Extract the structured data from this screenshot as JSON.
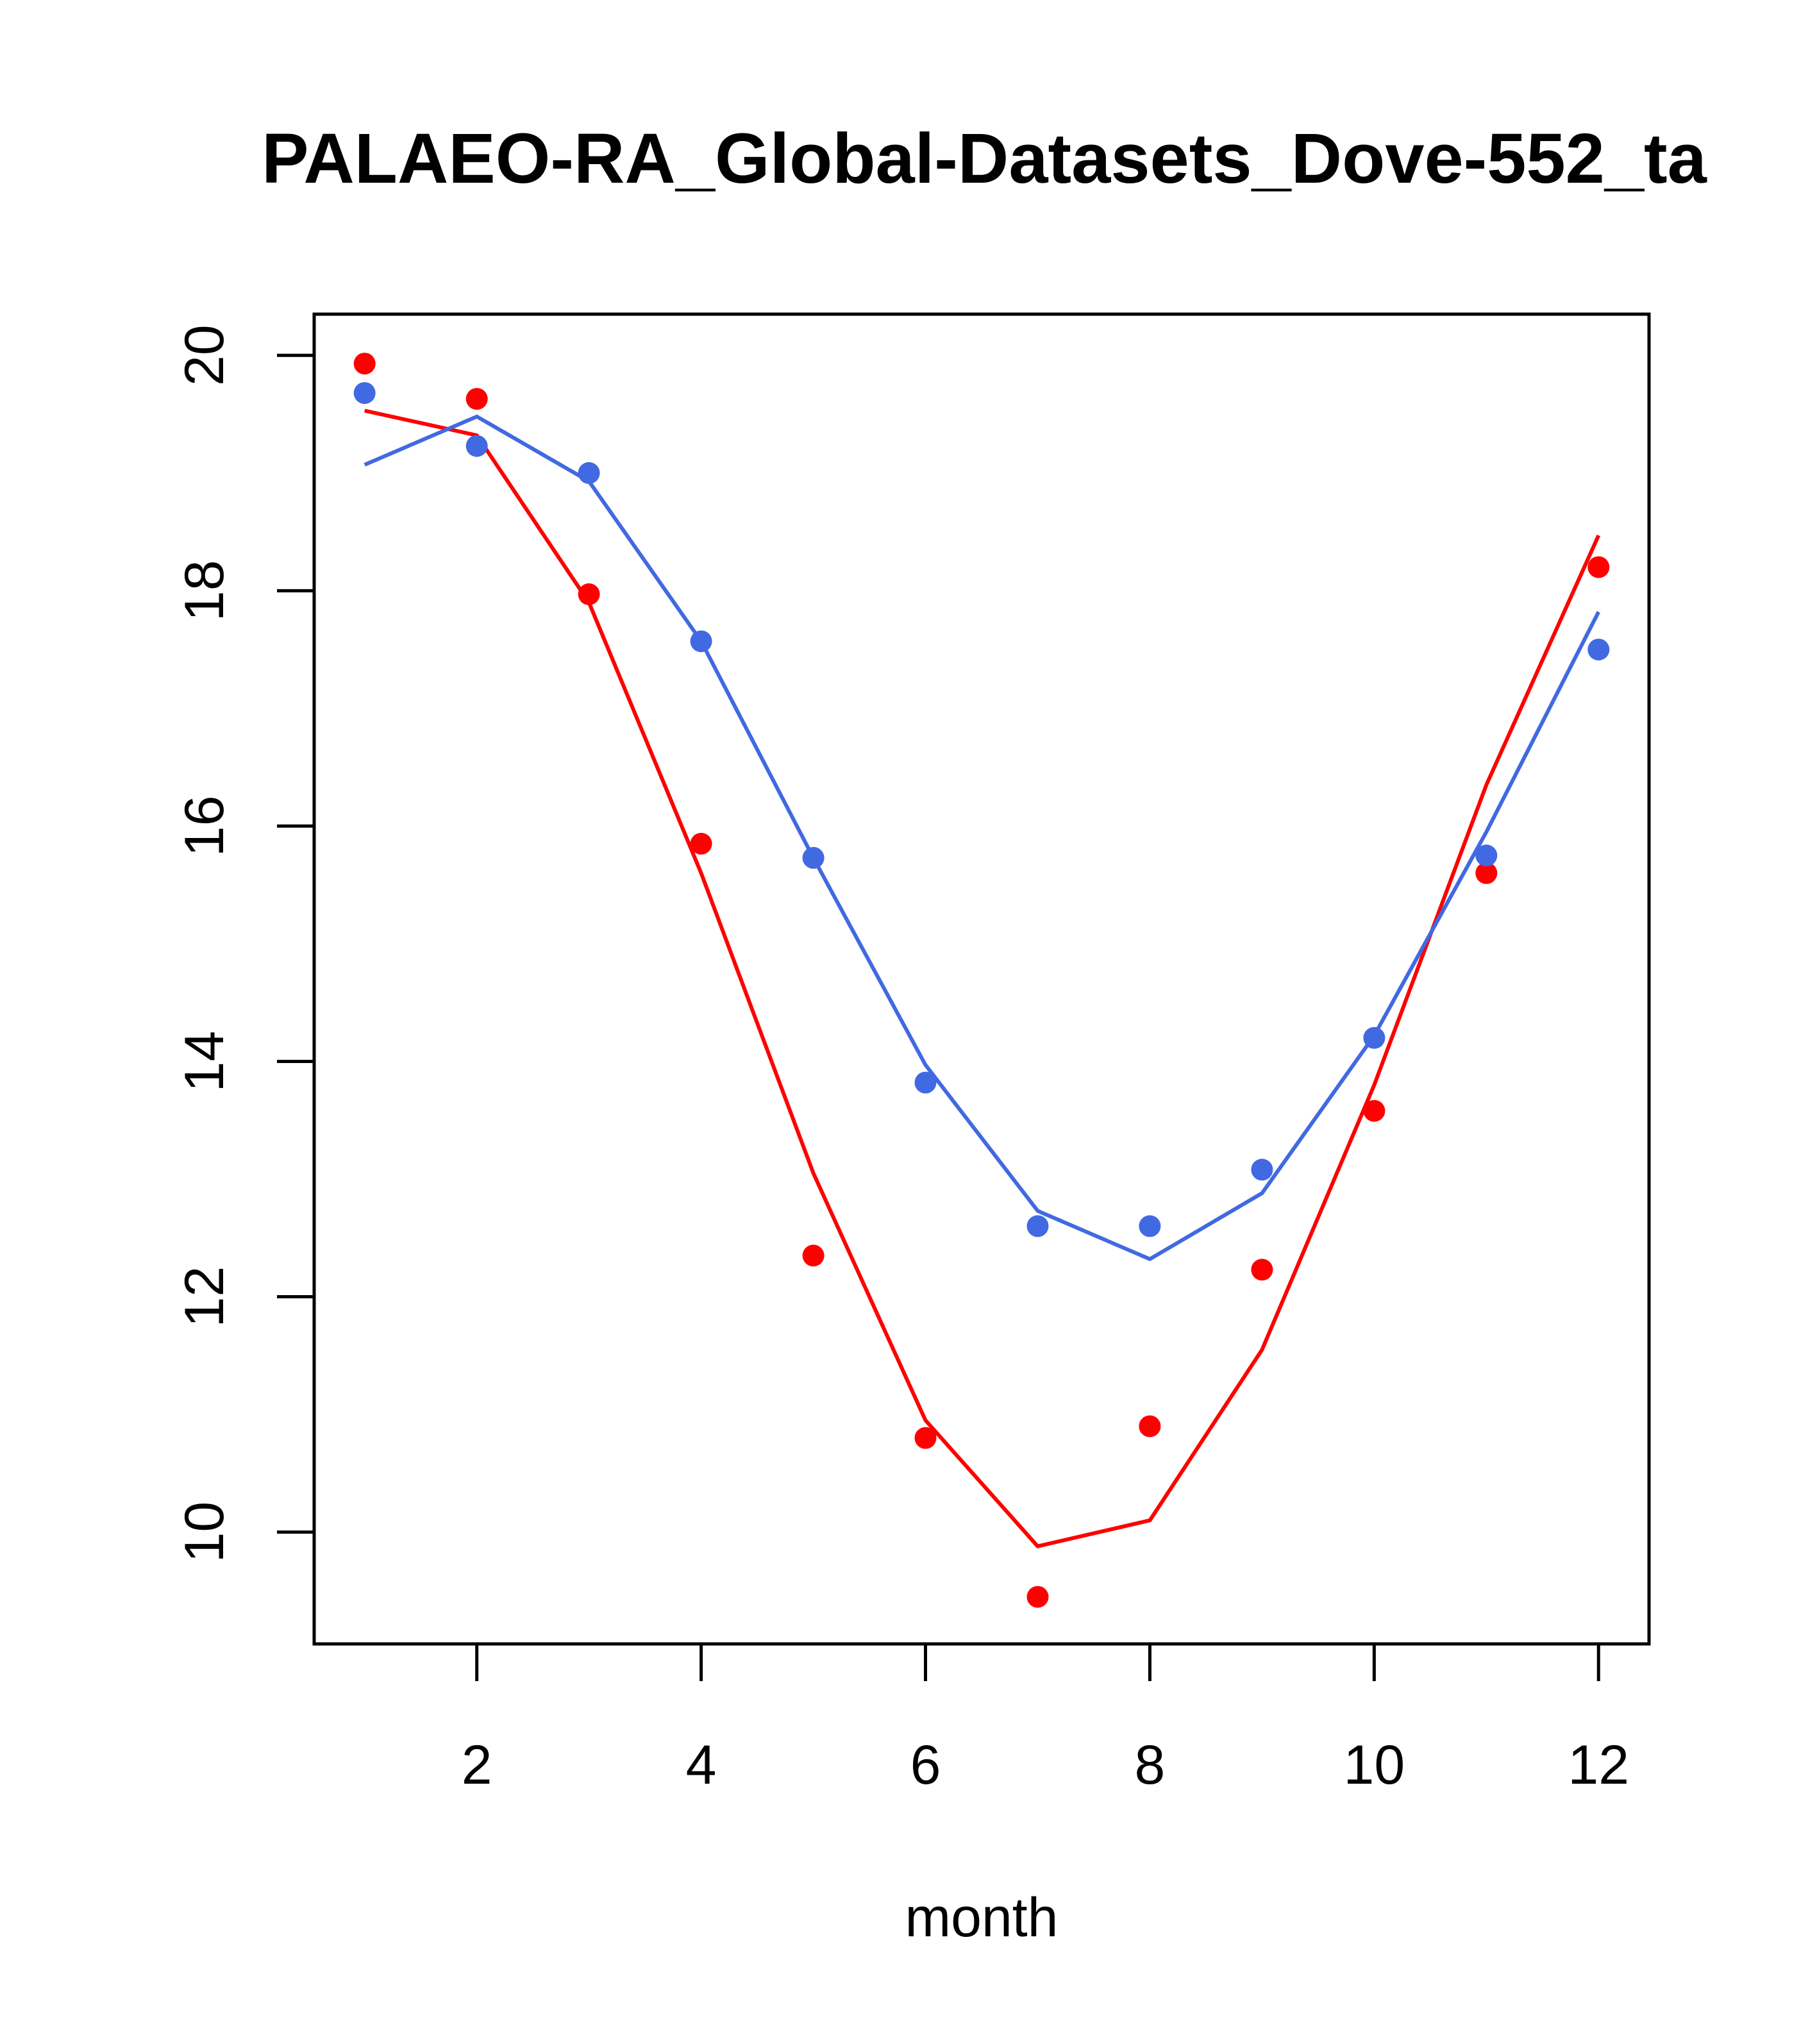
{
  "chart_data": {
    "type": "line",
    "title": "PALAEO-RA_Global-Datasets_Dove-552_ta",
    "xlabel": "month",
    "ylabel": "",
    "xlim": [
      0.55,
      12.45
    ],
    "ylim": [
      9.05,
      20.35
    ],
    "xticks": [
      2,
      4,
      6,
      8,
      10,
      12
    ],
    "yticks": [
      10,
      12,
      14,
      16,
      18,
      20
    ],
    "grid": false,
    "legend": "none",
    "series": [
      {
        "name": "red",
        "color": "#ff0000",
        "x": [
          1,
          2,
          3,
          4,
          5,
          6,
          7,
          8,
          9,
          10,
          11,
          12
        ],
        "points": [
          19.93,
          19.63,
          17.97,
          15.85,
          12.35,
          10.8,
          9.45,
          10.9,
          12.23,
          13.58,
          15.6,
          18.2
        ],
        "line": [
          19.53,
          19.32,
          17.9,
          15.6,
          13.05,
          10.95,
          9.88,
          10.1,
          11.55,
          13.8,
          16.35,
          18.47
        ]
      },
      {
        "name": "blue",
        "color": "#4169e1",
        "x": [
          1,
          2,
          3,
          4,
          5,
          6,
          7,
          8,
          9,
          10,
          11,
          12
        ],
        "points": [
          19.68,
          19.23,
          19.0,
          17.57,
          15.73,
          13.82,
          12.6,
          12.6,
          13.08,
          14.2,
          15.75,
          17.5
        ],
        "line": [
          19.07,
          19.48,
          18.93,
          17.57,
          15.73,
          13.97,
          12.73,
          12.32,
          12.88,
          14.22,
          15.95,
          17.82
        ]
      }
    ]
  }
}
